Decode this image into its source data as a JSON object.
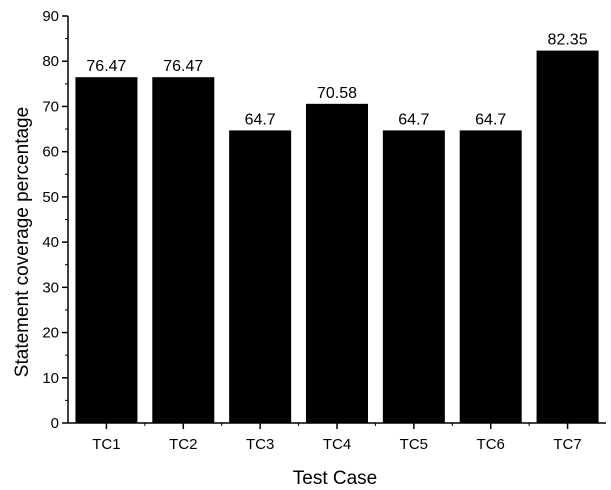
{
  "chart_data": {
    "type": "bar",
    "xlabel": "Test Case",
    "ylabel": "Statement coverage percentage",
    "categories": [
      "TC1",
      "TC2",
      "TC3",
      "TC4",
      "TC5",
      "TC6",
      "TC7"
    ],
    "values": [
      76.47,
      76.47,
      64.7,
      70.58,
      64.7,
      64.7,
      82.35
    ],
    "data_labels": [
      "76.47",
      "76.47",
      "64.7",
      "70.58",
      "64.7",
      "64.7",
      "82.35"
    ],
    "ylim": [
      0,
      90
    ],
    "yticks": [
      0,
      10,
      20,
      30,
      40,
      50,
      60,
      70,
      80,
      90
    ],
    "grid": false,
    "bar_color": "#000000"
  }
}
